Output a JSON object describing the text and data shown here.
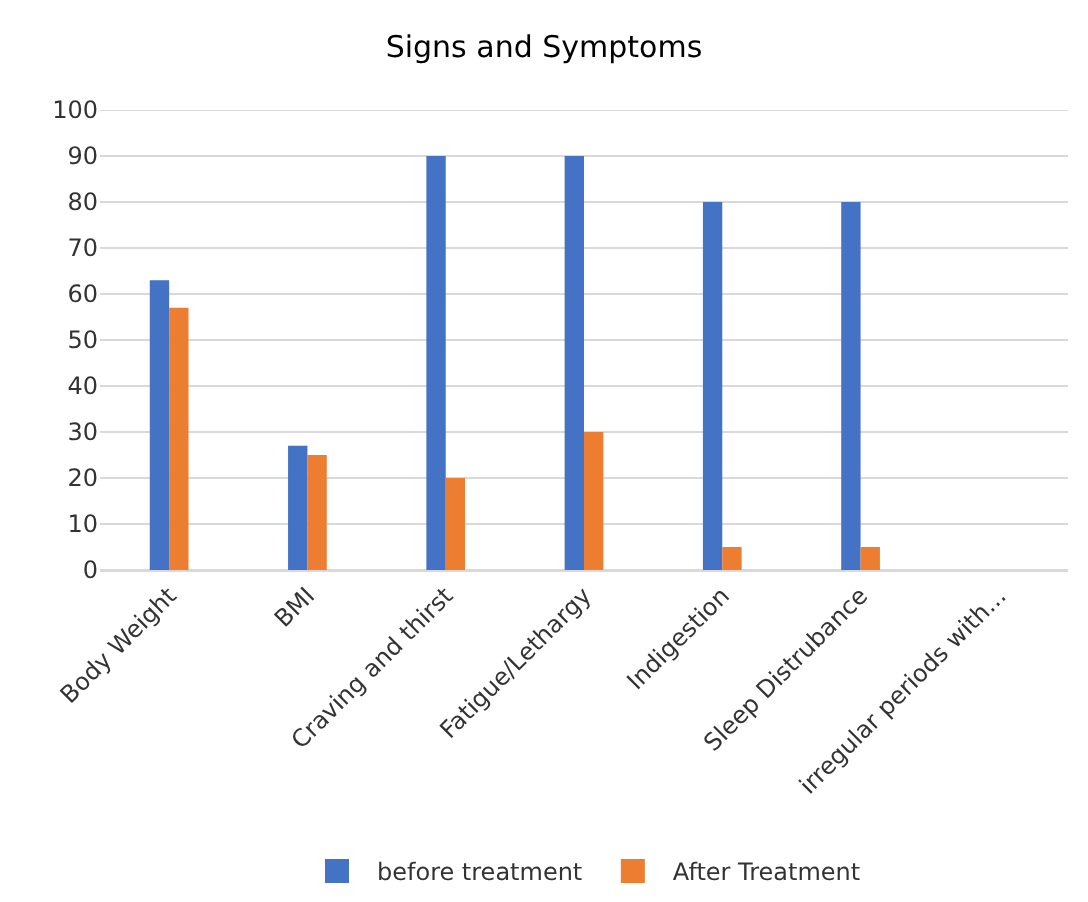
{
  "chart_data": {
    "type": "bar",
    "title": "Signs and Symptoms",
    "categories": [
      "Body Weight",
      "BMI",
      "Craving and thirst",
      "Fatigue/Lethargy",
      "Indigestion",
      "Sleep Distrubance",
      "irregular periods with..."
    ],
    "series": [
      {
        "name": "before treatment",
        "color": "#4472c4",
        "values": [
          63,
          27,
          90,
          90,
          80,
          80,
          null
        ]
      },
      {
        "name": "After Treatment",
        "color": "#ed7d31",
        "values": [
          57,
          25,
          20,
          30,
          5,
          5,
          null
        ]
      }
    ],
    "ylim": [
      0,
      100
    ],
    "yticks": [
      0,
      10,
      20,
      30,
      40,
      50,
      60,
      70,
      80,
      90,
      100
    ],
    "grid": "y",
    "legend": "bottom"
  }
}
